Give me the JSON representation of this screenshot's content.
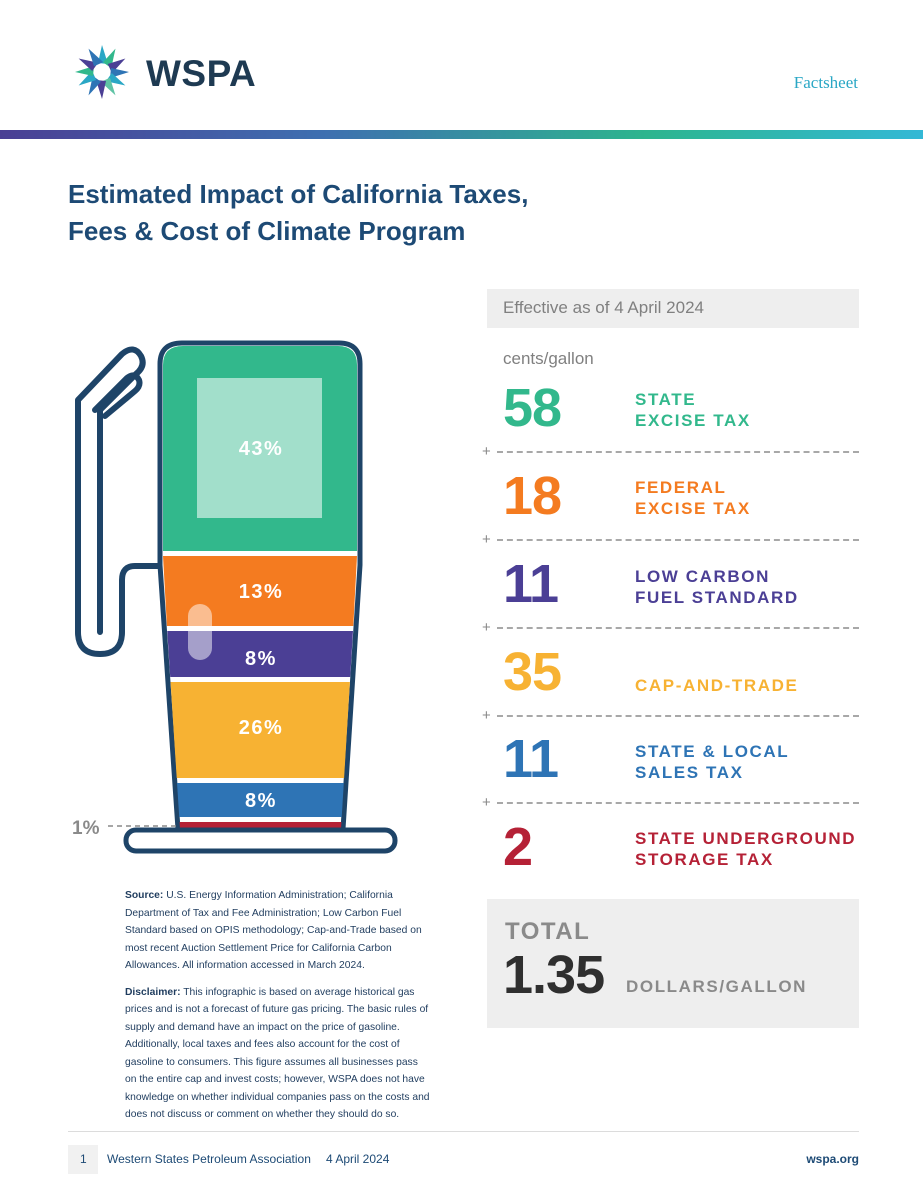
{
  "header": {
    "logo_text": "WSPA",
    "doc_type": "Factsheet",
    "colors": {
      "navy": "#1e3a52",
      "teal": "#2aa7c5"
    }
  },
  "title": {
    "line1": "Estimated Impact of California Taxes,",
    "line2": "Fees & Cost of Climate Program"
  },
  "effective": "Effective as of 4 April 2024",
  "unit_label": "cents/gallon",
  "taxes": [
    {
      "value": "58",
      "label_lines": [
        "STATE",
        "EXCISE TAX"
      ],
      "percent": "43%",
      "color": "#32b88c"
    },
    {
      "value": "18",
      "label_lines": [
        "FEDERAL",
        "EXCISE TAX"
      ],
      "percent": "13%",
      "color": "#f47b20"
    },
    {
      "value": "11",
      "label_lines": [
        "LOW CARBON",
        "FUEL STANDARD"
      ],
      "percent": "8%",
      "color": "#4b3f95"
    },
    {
      "value": "35",
      "label_lines": [
        "CAP-AND-TRADE"
      ],
      "percent": "26%",
      "color": "#f7b233"
    },
    {
      "value": "11",
      "label_lines": [
        "STATE & LOCAL",
        "SALES TAX"
      ],
      "percent": "8%",
      "color": "#2e74b5"
    },
    {
      "value": "2",
      "label_lines": [
        "STATE UNDERGROUND",
        "STORAGE TAX"
      ],
      "percent": "1%",
      "color": "#b52136"
    }
  ],
  "plus_sign": "+",
  "total": {
    "label": "TOTAL",
    "value": "1.35",
    "unit": "DOLLARS/GALLON"
  },
  "notes": {
    "source_label": "Source:",
    "source_text": "U.S. Energy Information Administration; California Department of Tax and Fee Administration; Low Carbon Fuel Standard based on OPIS methodology; Cap-and-Trade based on most recent Auction Settlement Price for California Carbon Allowances. All information accessed in March 2024.",
    "disclaimer_label": "Disclaimer:",
    "disclaimer_text": "This infographic is based on average historical gas prices and is not a forecast of future gas pricing. The basic rules of supply and demand have an impact on the price of gasoline. Additionally, local taxes and fees also account for the cost of gasoline to consumers. This figure assumes all businesses pass on the entire cap and invest costs; however, WSPA does not have knowledge on whether individual companies pass on the costs and does not discuss or comment on whether they should do so."
  },
  "footer": {
    "page": "1",
    "org": "Western States Petroleum Association",
    "date": "4 April 2024",
    "url": "wspa.org"
  }
}
